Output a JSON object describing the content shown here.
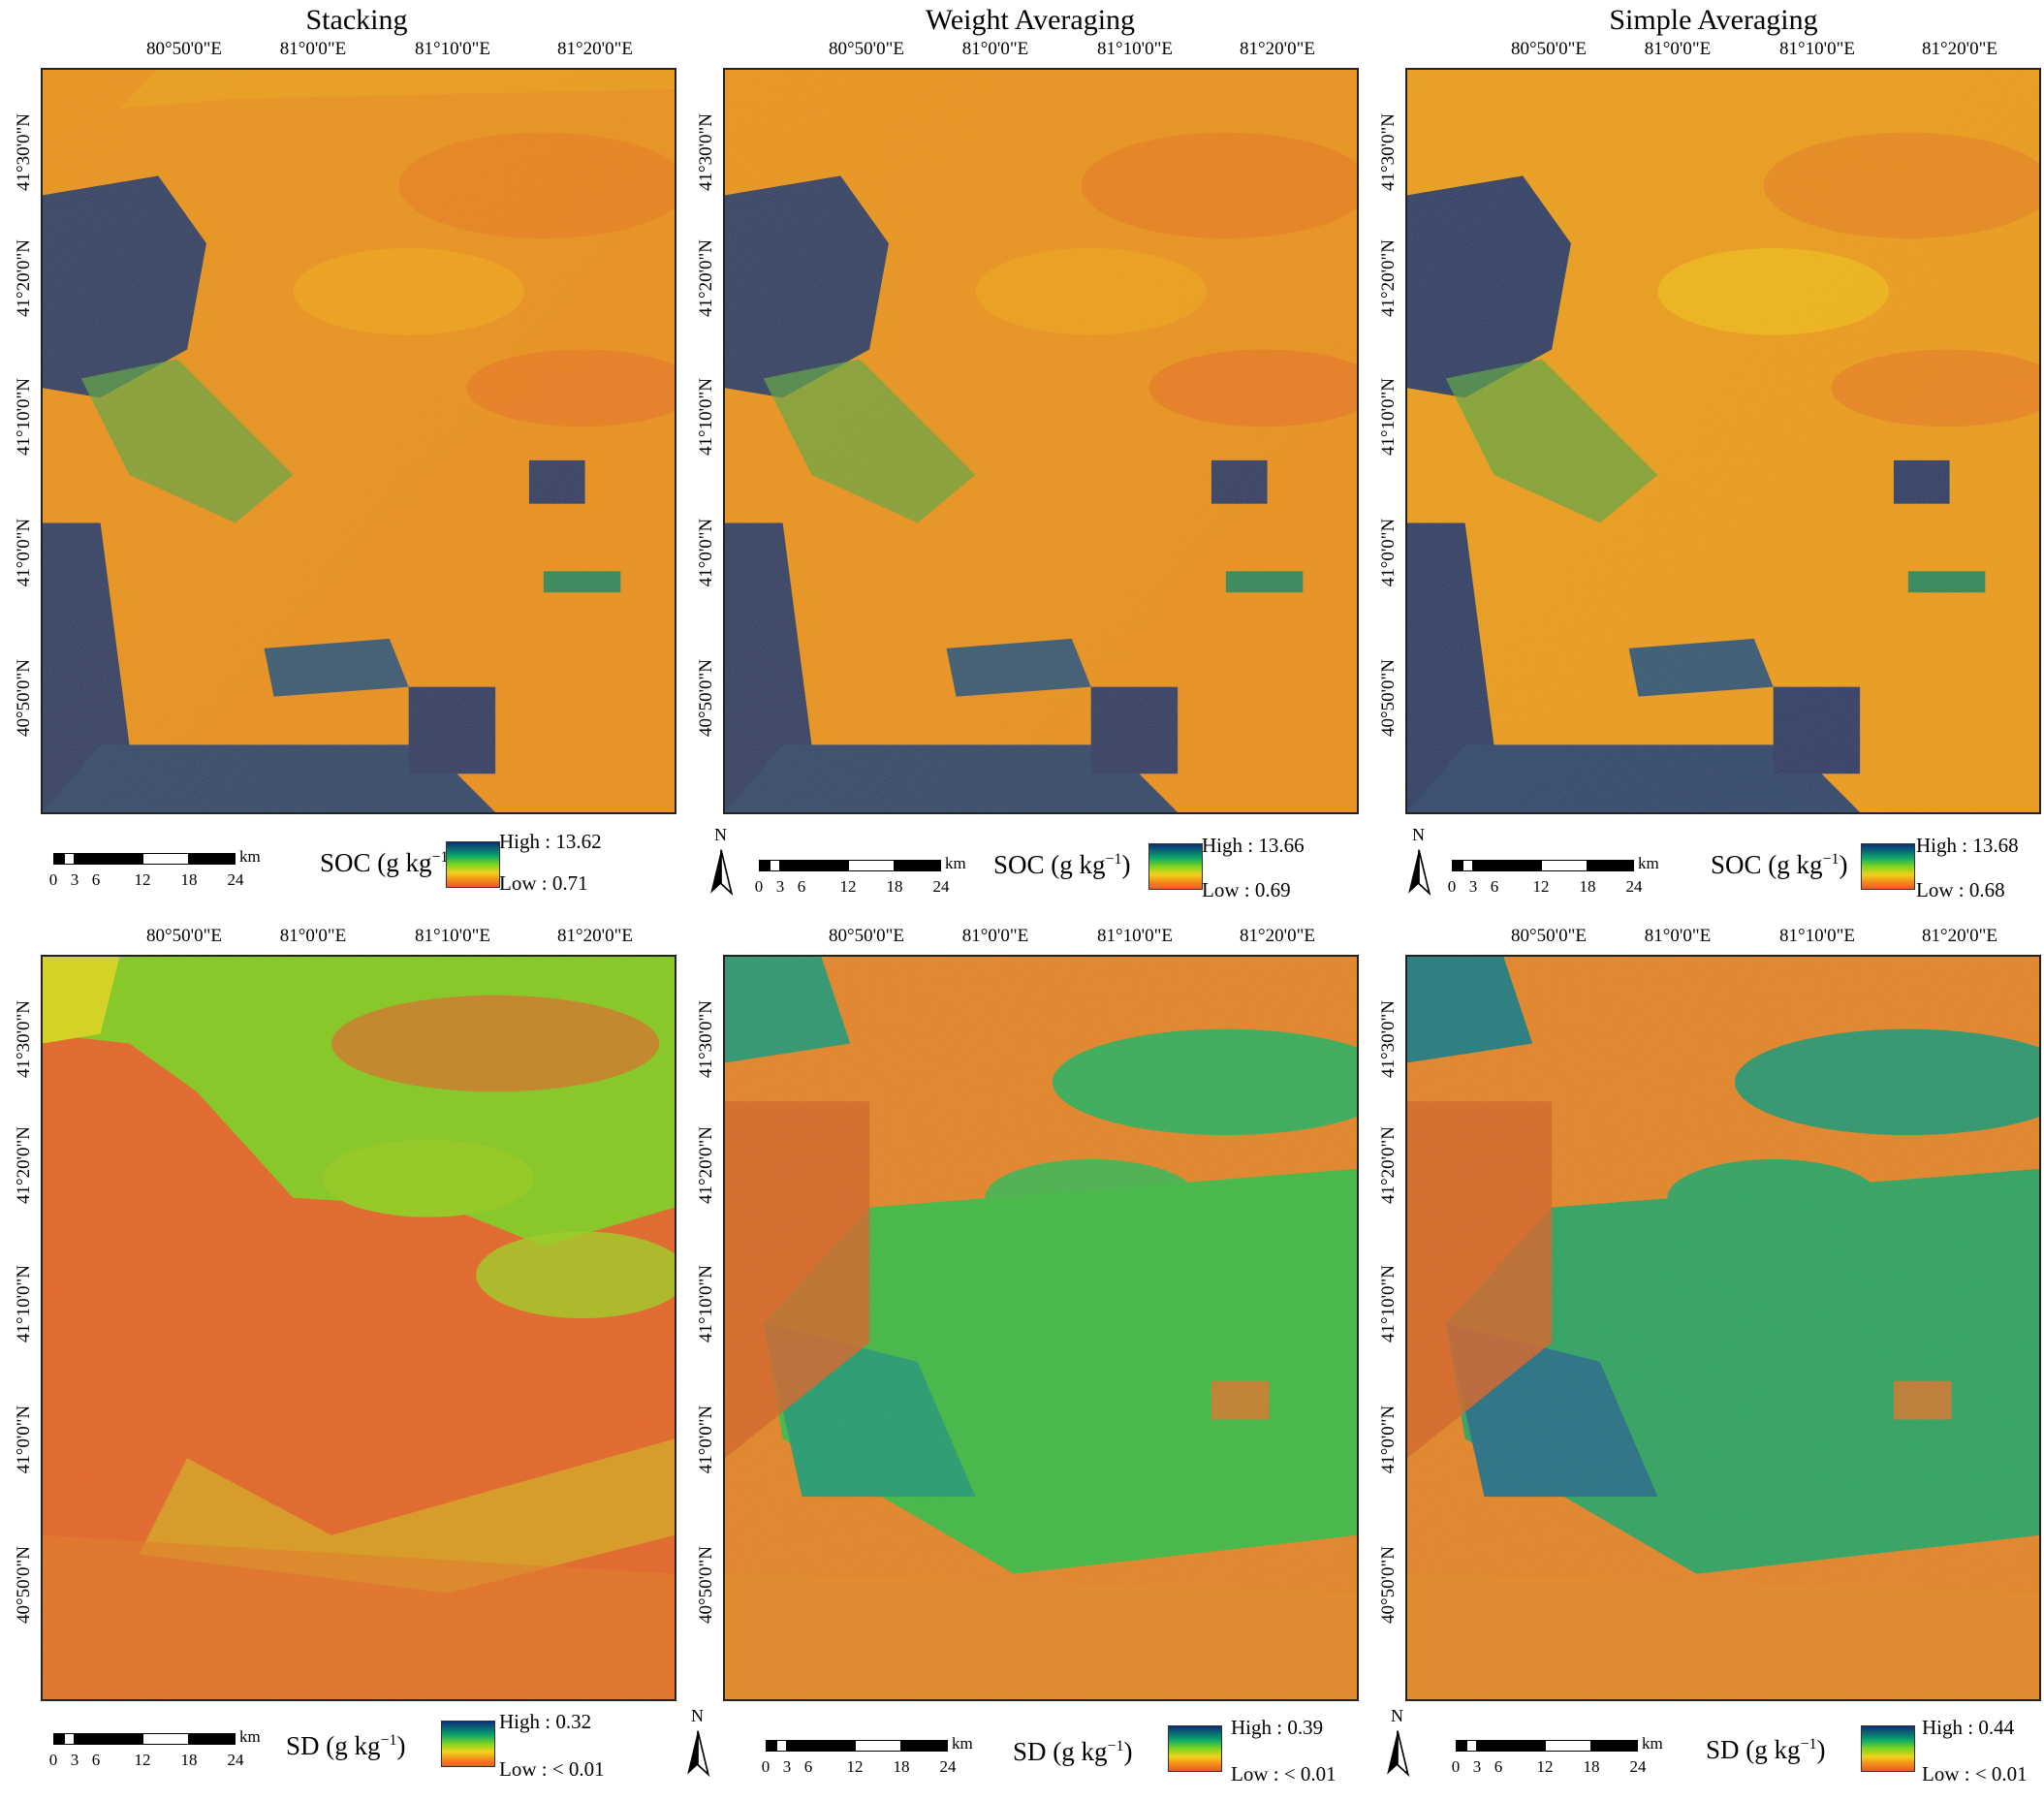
{
  "columns": [
    {
      "title": "Stacking"
    },
    {
      "title": "Weight Averaging"
    },
    {
      "title": "Simple Averaging"
    }
  ],
  "lon_ticks": [
    "80°50'0\"E",
    "81°0'0\"E",
    "81°10'0\"E",
    "81°20'0\"E"
  ],
  "lat_ticks": [
    "41°30'0\"N",
    "41°20'0\"N",
    "41°10'0\"N",
    "41°0'0\"N",
    "40°50'0\"N"
  ],
  "scalebar": {
    "labels": [
      "0",
      "3",
      "6",
      "12",
      "18",
      "24"
    ],
    "unit": "km"
  },
  "north_label": "N",
  "soc": {
    "legend_title": "SOC (g kg",
    "legend_exp": "−1",
    "legend_close": ")",
    "panels": [
      {
        "high": "High : 13.62",
        "low": "Low : 0.71"
      },
      {
        "high": "High : 13.66",
        "low": "Low : 0.69"
      },
      {
        "high": "High : 13.68",
        "low": "Low : 0.68"
      }
    ]
  },
  "sd": {
    "legend_title": "SD (g kg",
    "legend_exp": "−1",
    "legend_close": ")",
    "panels": [
      {
        "high": "High : 0.32",
        "low": "Low : < 0.01"
      },
      {
        "high": "High : 0.39",
        "low": "Low : < 0.01"
      },
      {
        "high": "High : 0.44",
        "low": "Low : < 0.01"
      }
    ]
  },
  "colors": {
    "ramp_high": "#0b2e7a",
    "ramp_mid": "#7dd620",
    "ramp_low": "#f05a28",
    "soc_background": "#f0951e",
    "sd_stacking_background": "#e8642a"
  }
}
